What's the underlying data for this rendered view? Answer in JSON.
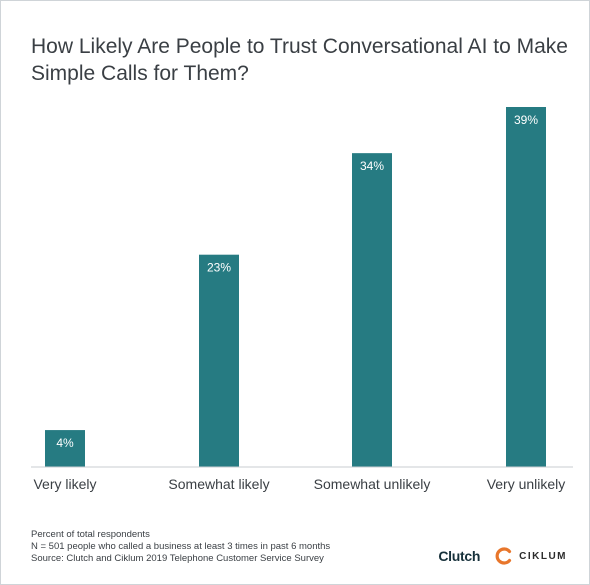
{
  "title": "How Likely Are People to Trust Conversational AI to Make Simple Calls for Them?",
  "chart_data": {
    "type": "bar",
    "categories": [
      "Very likely",
      "Somewhat likely",
      "Somewhat unlikely",
      "Very unlikely"
    ],
    "values": [
      4,
      23,
      34,
      39
    ],
    "data_labels": [
      "4%",
      "23%",
      "34%",
      "39%"
    ],
    "ylim": [
      0,
      39
    ],
    "bar_color": "#267b82",
    "grid": false,
    "legend": "none"
  },
  "footnotes": [
    "Percent of total respondents",
    "N = 501 people who called a business at least 3 times in past 6 months",
    "Source: Clutch and Ciklum 2019 Telephone Customer Service Survey"
  ],
  "logos": {
    "clutch": "Clutch",
    "ciklum": "CIKLUM",
    "ciklum_color": "#e8762b"
  }
}
